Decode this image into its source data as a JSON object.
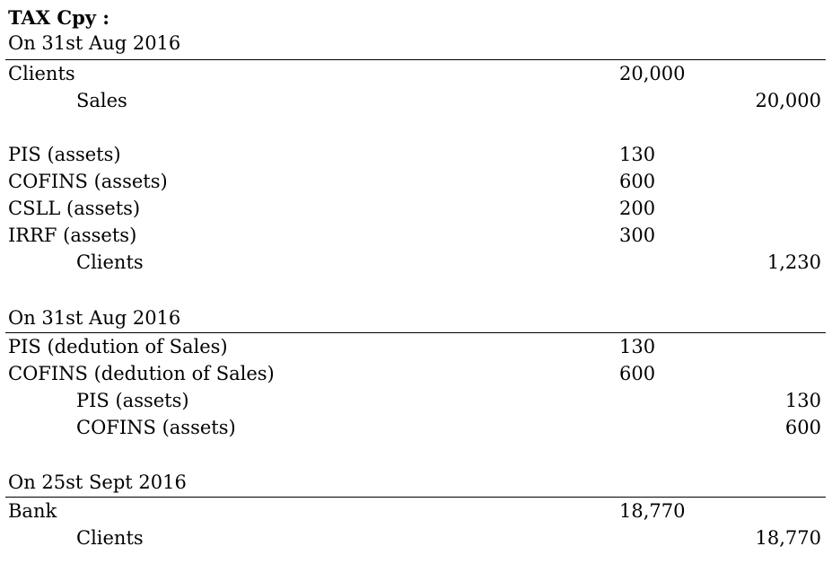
{
  "title": "TAX Cpy :",
  "entries": [
    {
      "date": "On 31st Aug 2016",
      "lines": [
        {
          "account": "Clients",
          "debit": "20,000",
          "credit": ""
        },
        {
          "account": "Sales",
          "debit": "",
          "credit": "20,000"
        }
      ]
    },
    {
      "date": "",
      "lines": [
        {
          "account": "PIS (assets)",
          "debit": "130",
          "credit": ""
        },
        {
          "account": "COFINS (assets)",
          "debit": "600",
          "credit": ""
        },
        {
          "account": "CSLL (assets)",
          "debit": "200",
          "credit": ""
        },
        {
          "account": "IRRF (assets)",
          "debit": "300",
          "credit": ""
        },
        {
          "account": "Clients",
          "debit": "",
          "credit": "1,230"
        }
      ]
    },
    {
      "date": "On 31st Aug 2016",
      "lines": [
        {
          "account": "PIS (dedution of Sales)",
          "debit": "130",
          "credit": ""
        },
        {
          "account": "COFINS (dedution of Sales)",
          "debit": "600",
          "credit": ""
        },
        {
          "account": "PIS (assets)",
          "debit": "",
          "credit": "130"
        },
        {
          "account": "COFINS (assets)",
          "debit": "",
          "credit": "600"
        }
      ]
    },
    {
      "date": "On 25st Sept 2016",
      "lines": [
        {
          "account": "Bank",
          "debit": "18,770",
          "credit": ""
        },
        {
          "account": "Clients",
          "debit": "",
          "credit": "18,770"
        }
      ]
    }
  ]
}
